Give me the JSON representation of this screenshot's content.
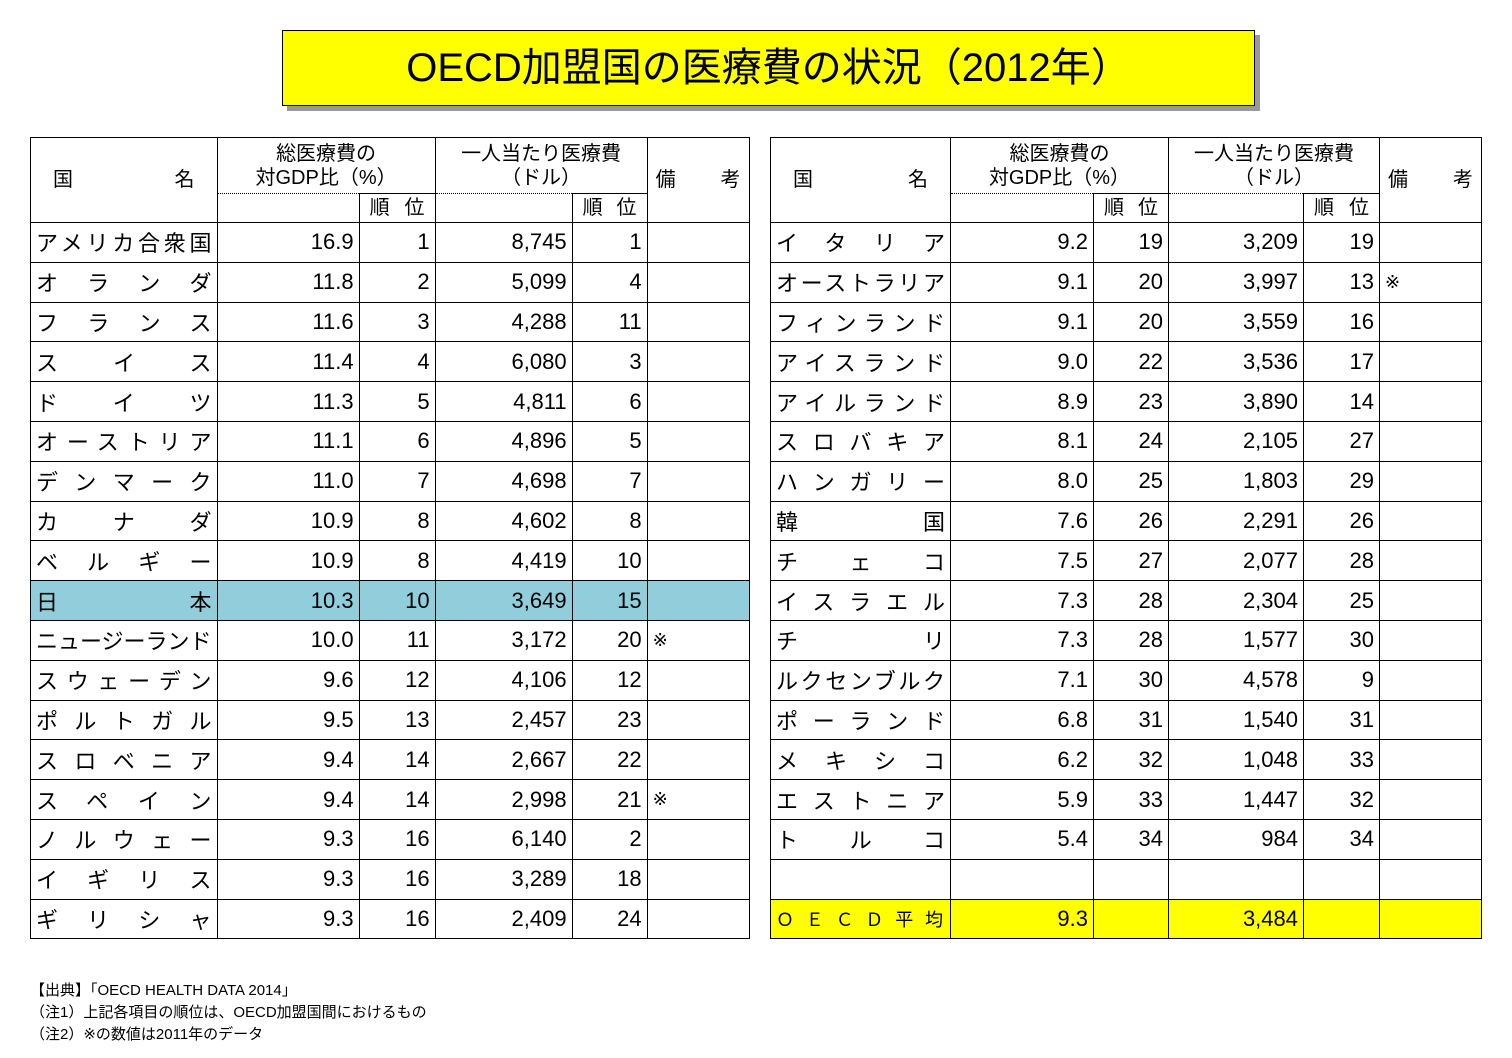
{
  "title": "OECD加盟国の医療費の状況（2012年）",
  "header": {
    "country": "国名",
    "gdp": [
      "総医療費の",
      "対GDP比（%）"
    ],
    "per_capita": [
      "一人当たり医療費",
      "（ドル）"
    ],
    "rank": "順位",
    "note": "備考"
  },
  "tables": [
    {
      "rows": [
        {
          "name": "アメリカ合衆国",
          "gdp": "16.9",
          "gdp_rank": "1",
          "per_capita": "8,745",
          "per_capita_rank": "1"
        },
        {
          "name": "オランダ",
          "gdp": "11.8",
          "gdp_rank": "2",
          "per_capita": "5,099",
          "per_capita_rank": "4"
        },
        {
          "name": "フランス",
          "gdp": "11.6",
          "gdp_rank": "3",
          "per_capita": "4,288",
          "per_capita_rank": "11"
        },
        {
          "name": "スイス",
          "gdp": "11.4",
          "gdp_rank": "4",
          "per_capita": "6,080",
          "per_capita_rank": "3"
        },
        {
          "name": "ドイツ",
          "gdp": "11.3",
          "gdp_rank": "5",
          "per_capita": "4,811",
          "per_capita_rank": "6"
        },
        {
          "name": "オーストリア",
          "gdp": "11.1",
          "gdp_rank": "6",
          "per_capita": "4,896",
          "per_capita_rank": "5"
        },
        {
          "name": "デンマーク",
          "gdp": "11.0",
          "gdp_rank": "7",
          "per_capita": "4,698",
          "per_capita_rank": "7"
        },
        {
          "name": "カナダ",
          "gdp": "10.9",
          "gdp_rank": "8",
          "per_capita": "4,602",
          "per_capita_rank": "8"
        },
        {
          "name": "ベルギー",
          "gdp": "10.9",
          "gdp_rank": "8",
          "per_capita": "4,419",
          "per_capita_rank": "10"
        },
        {
          "name": "日本",
          "gdp": "10.3",
          "gdp_rank": "10",
          "per_capita": "3,649",
          "per_capita_rank": "15",
          "highlight": true
        },
        {
          "name": "ニュージーランド",
          "gdp": "10.0",
          "gdp_rank": "11",
          "per_capita": "3,172",
          "per_capita_rank": "20",
          "note": "※"
        },
        {
          "name": "スウェーデン",
          "gdp": "9.6",
          "gdp_rank": "12",
          "per_capita": "4,106",
          "per_capita_rank": "12"
        },
        {
          "name": "ポルトガル",
          "gdp": "9.5",
          "gdp_rank": "13",
          "per_capita": "2,457",
          "per_capita_rank": "23"
        },
        {
          "name": "スロベニア",
          "gdp": "9.4",
          "gdp_rank": "14",
          "per_capita": "2,667",
          "per_capita_rank": "22"
        },
        {
          "name": "スペイン",
          "gdp": "9.4",
          "gdp_rank": "14",
          "per_capita": "2,998",
          "per_capita_rank": "21",
          "note": "※"
        },
        {
          "name": "ノルウェー",
          "gdp": "9.3",
          "gdp_rank": "16",
          "per_capita": "6,140",
          "per_capita_rank": "2"
        },
        {
          "name": "イギリス",
          "gdp": "9.3",
          "gdp_rank": "16",
          "per_capita": "3,289",
          "per_capita_rank": "18"
        },
        {
          "name": "ギリシャ",
          "gdp": "9.3",
          "gdp_rank": "16",
          "per_capita": "2,409",
          "per_capita_rank": "24"
        }
      ]
    },
    {
      "rows": [
        {
          "name": "イタリア",
          "gdp": "9.2",
          "gdp_rank": "19",
          "per_capita": "3,209",
          "per_capita_rank": "19"
        },
        {
          "name": "オーストラリア",
          "gdp": "9.1",
          "gdp_rank": "20",
          "per_capita": "3,997",
          "per_capita_rank": "13",
          "note": "※"
        },
        {
          "name": "フィンランド",
          "gdp": "9.1",
          "gdp_rank": "20",
          "per_capita": "3,559",
          "per_capita_rank": "16"
        },
        {
          "name": "アイスランド",
          "gdp": "9.0",
          "gdp_rank": "22",
          "per_capita": "3,536",
          "per_capita_rank": "17"
        },
        {
          "name": "アイルランド",
          "gdp": "8.9",
          "gdp_rank": "23",
          "per_capita": "3,890",
          "per_capita_rank": "14"
        },
        {
          "name": "スロバキア",
          "gdp": "8.1",
          "gdp_rank": "24",
          "per_capita": "2,105",
          "per_capita_rank": "27"
        },
        {
          "name": "ハンガリー",
          "gdp": "8.0",
          "gdp_rank": "25",
          "per_capita": "1,803",
          "per_capita_rank": "29"
        },
        {
          "name": "韓国",
          "gdp": "7.6",
          "gdp_rank": "26",
          "per_capita": "2,291",
          "per_capita_rank": "26"
        },
        {
          "name": "チェコ",
          "gdp": "7.5",
          "gdp_rank": "27",
          "per_capita": "2,077",
          "per_capita_rank": "28"
        },
        {
          "name": "イスラエル",
          "gdp": "7.3",
          "gdp_rank": "28",
          "per_capita": "2,304",
          "per_capita_rank": "25"
        },
        {
          "name": "チリ",
          "gdp": "7.3",
          "gdp_rank": "28",
          "per_capita": "1,577",
          "per_capita_rank": "30"
        },
        {
          "name": "ルクセンブルク",
          "gdp": "7.1",
          "gdp_rank": "30",
          "per_capita": "4,578",
          "per_capita_rank": "9"
        },
        {
          "name": "ポーランド",
          "gdp": "6.8",
          "gdp_rank": "31",
          "per_capita": "1,540",
          "per_capita_rank": "31"
        },
        {
          "name": "メキシコ",
          "gdp": "6.2",
          "gdp_rank": "32",
          "per_capita": "1,048",
          "per_capita_rank": "33"
        },
        {
          "name": "エストニア",
          "gdp": "5.9",
          "gdp_rank": "33",
          "per_capita": "1,447",
          "per_capita_rank": "32"
        },
        {
          "name": "トルコ",
          "gdp": "5.4",
          "gdp_rank": "34",
          "per_capita": "984",
          "per_capita_rank": "34"
        }
      ],
      "average": {
        "name": "ＯＥＣＤ平均",
        "gdp": "9.3",
        "per_capita": "3,484"
      }
    }
  ],
  "notes": [
    "【出典】「OECD HEALTH DATA 2014」",
    "（注1）上記各項目の順位は、OECD加盟国間におけるもの",
    "（注2）※の数値は2011年のデータ"
  ]
}
